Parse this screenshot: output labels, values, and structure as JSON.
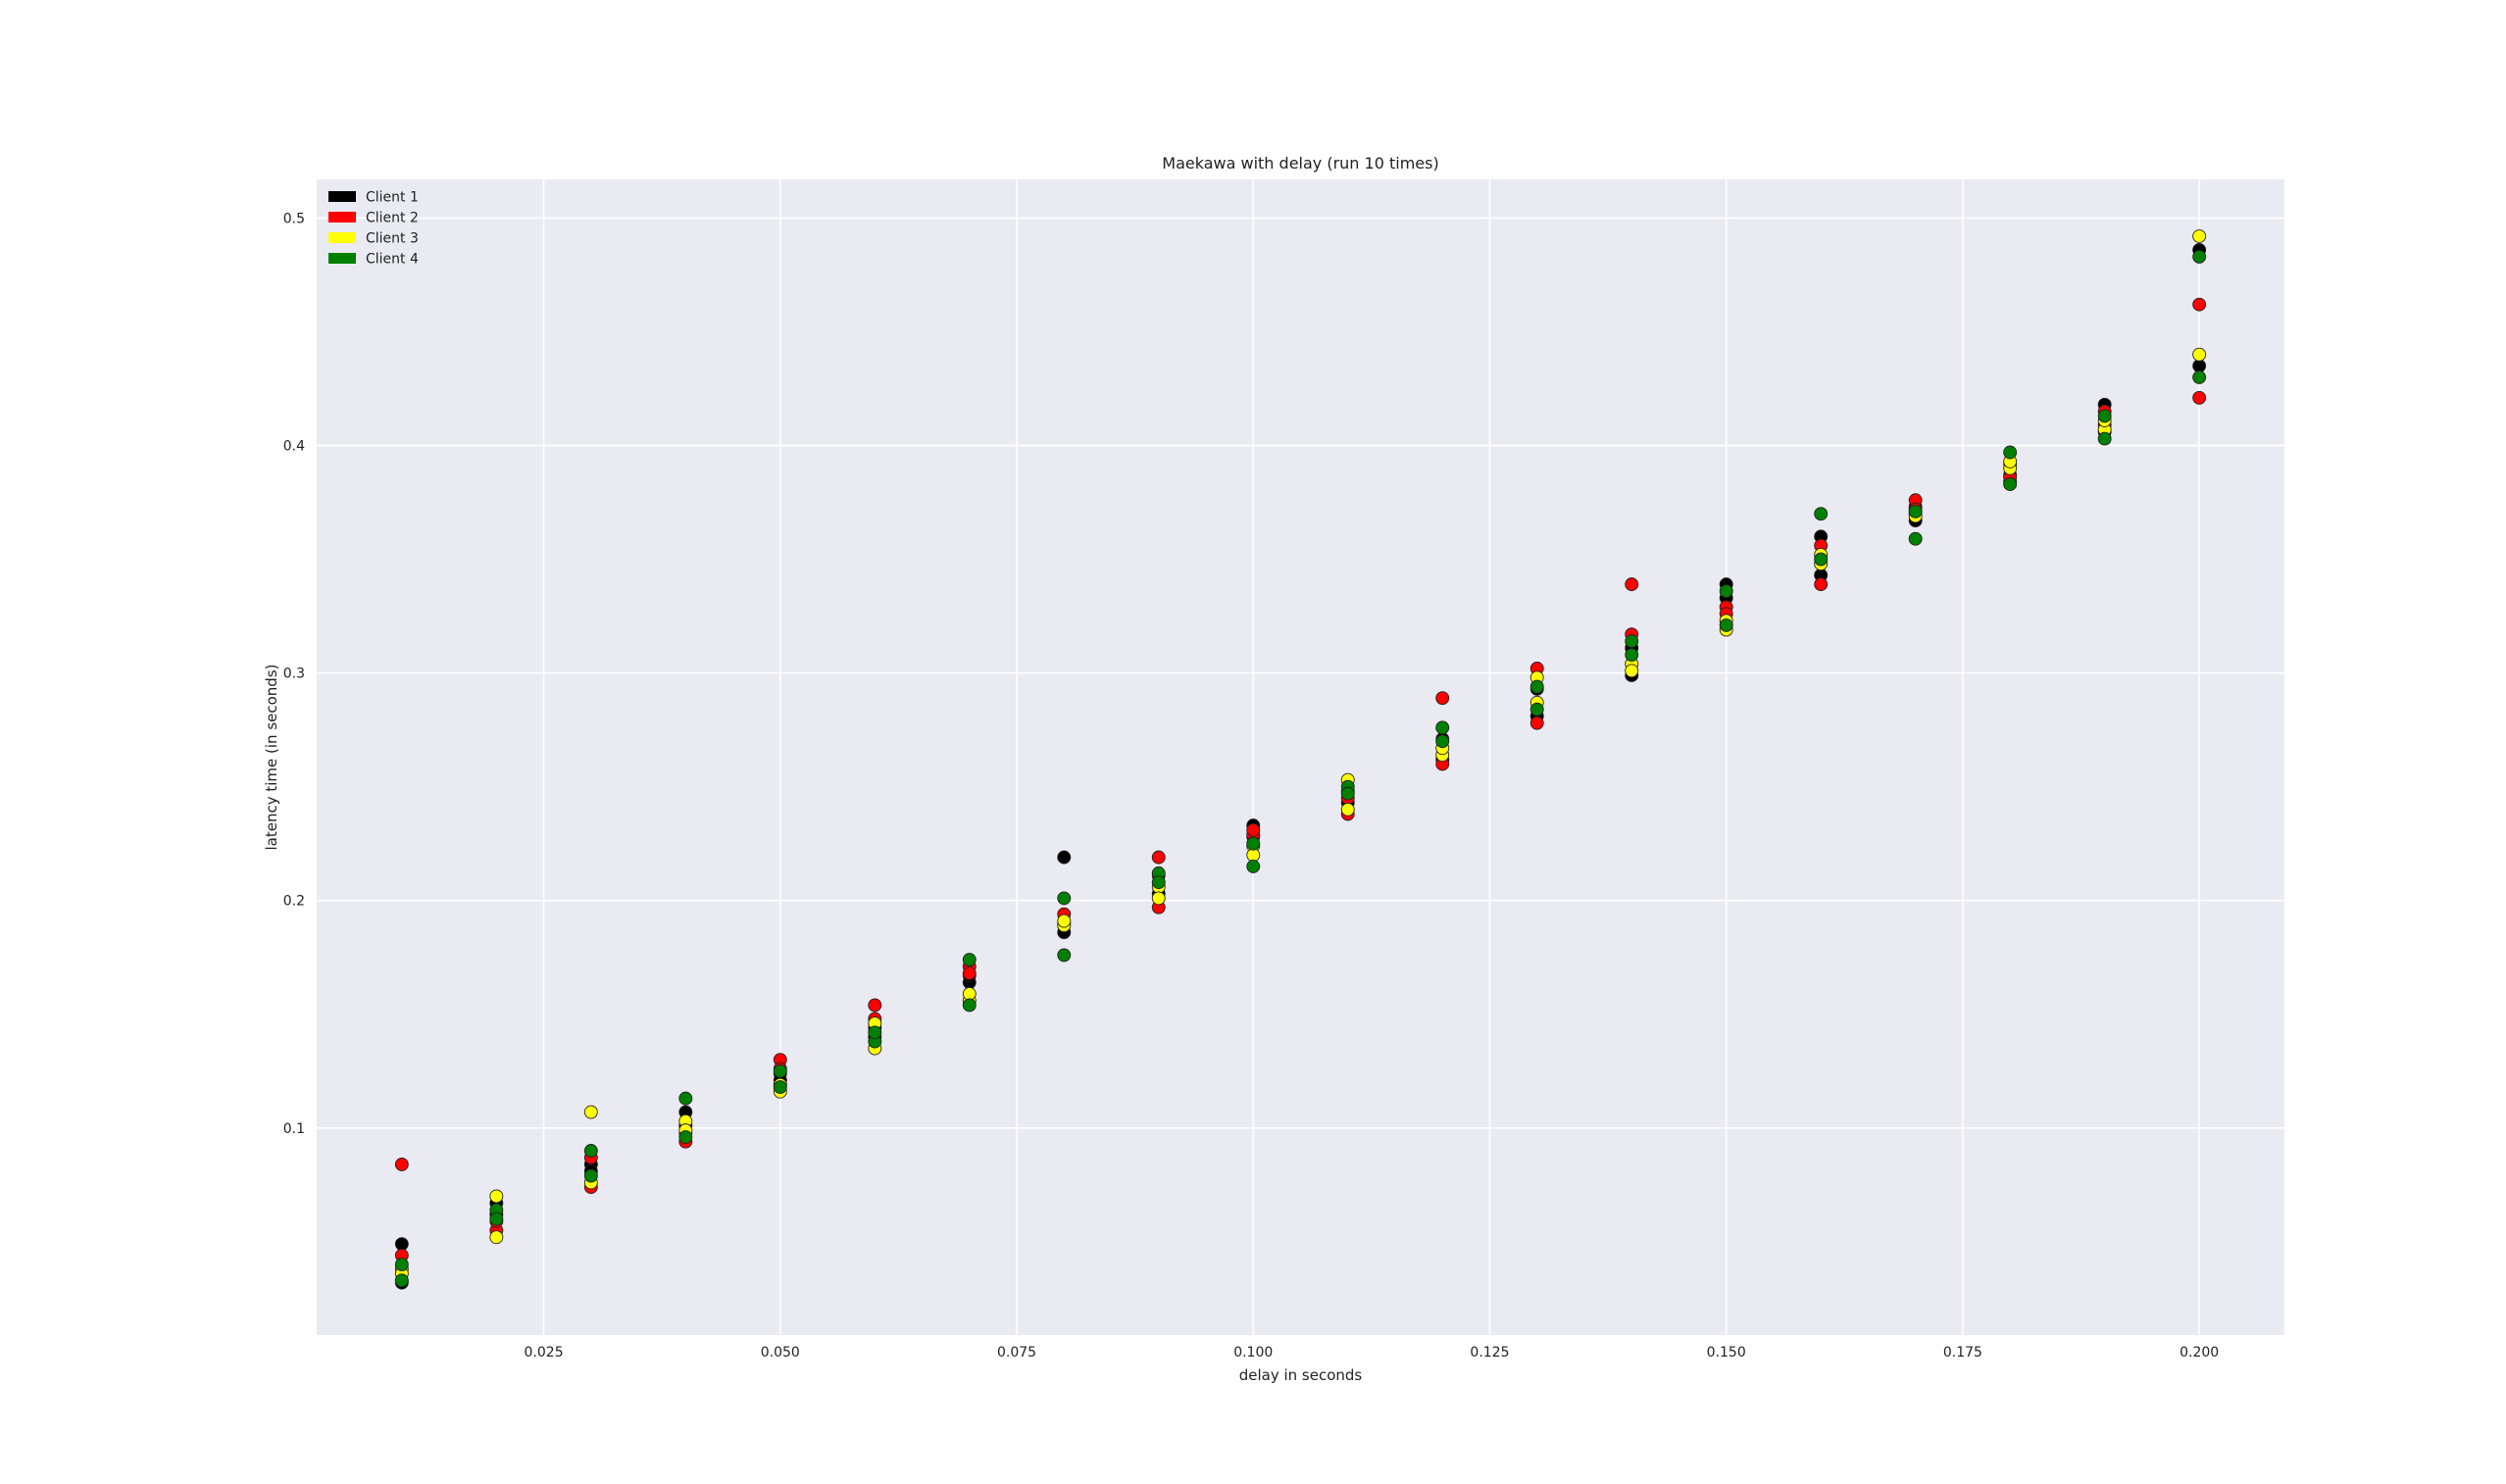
{
  "chart_data": {
    "type": "scatter",
    "title": "Maekawa with delay (run 10 times)",
    "xlabel": "delay in seconds",
    "ylabel": "latency time (in seconds)",
    "xlim": [
      0.001,
      0.209
    ],
    "ylim": [
      0.009,
      0.517
    ],
    "x_ticks": [
      0.025,
      0.05,
      0.075,
      0.1,
      0.125,
      0.15,
      0.175,
      0.2
    ],
    "x_tick_labels": [
      "0.025",
      "0.050",
      "0.075",
      "0.100",
      "0.125",
      "0.150",
      "0.175",
      "0.200"
    ],
    "y_ticks": [
      0.1,
      0.2,
      0.3,
      0.4,
      0.5
    ],
    "y_tick_labels": [
      "0.1",
      "0.2",
      "0.3",
      "0.4",
      "0.5"
    ],
    "grid": true,
    "legend_position": "top-left",
    "background": "#eaeaf2",
    "series": [
      {
        "name": "Client 1",
        "color": "#000000",
        "points": [
          [
            0.01,
            0.049
          ],
          [
            0.01,
            0.032
          ],
          [
            0.02,
            0.067
          ],
          [
            0.02,
            0.062
          ],
          [
            0.03,
            0.084
          ],
          [
            0.03,
            0.081
          ],
          [
            0.04,
            0.101
          ],
          [
            0.04,
            0.107
          ],
          [
            0.05,
            0.121
          ],
          [
            0.05,
            0.124
          ],
          [
            0.06,
            0.14
          ],
          [
            0.06,
            0.144
          ],
          [
            0.07,
            0.164
          ],
          [
            0.07,
            0.167
          ],
          [
            0.08,
            0.219
          ],
          [
            0.08,
            0.186
          ],
          [
            0.09,
            0.203
          ],
          [
            0.09,
            0.211
          ],
          [
            0.1,
            0.233
          ],
          [
            0.1,
            0.228
          ],
          [
            0.11,
            0.243
          ],
          [
            0.11,
            0.248
          ],
          [
            0.12,
            0.262
          ],
          [
            0.12,
            0.271
          ],
          [
            0.13,
            0.281
          ],
          [
            0.13,
            0.293
          ],
          [
            0.14,
            0.299
          ],
          [
            0.14,
            0.311
          ],
          [
            0.15,
            0.339
          ],
          [
            0.15,
            0.333
          ],
          [
            0.16,
            0.36
          ],
          [
            0.16,
            0.343
          ],
          [
            0.17,
            0.367
          ],
          [
            0.17,
            0.373
          ],
          [
            0.18,
            0.387
          ],
          [
            0.18,
            0.392
          ],
          [
            0.19,
            0.418
          ],
          [
            0.19,
            0.406
          ],
          [
            0.2,
            0.486
          ],
          [
            0.2,
            0.435
          ]
        ]
      },
      {
        "name": "Client 2",
        "color": "#ff0000",
        "points": [
          [
            0.01,
            0.084
          ],
          [
            0.01,
            0.044
          ],
          [
            0.02,
            0.055
          ],
          [
            0.02,
            0.059
          ],
          [
            0.03,
            0.087
          ],
          [
            0.03,
            0.074
          ],
          [
            0.04,
            0.094
          ],
          [
            0.04,
            0.098
          ],
          [
            0.05,
            0.13
          ],
          [
            0.05,
            0.126
          ],
          [
            0.06,
            0.154
          ],
          [
            0.06,
            0.148
          ],
          [
            0.07,
            0.171
          ],
          [
            0.07,
            0.168
          ],
          [
            0.08,
            0.194
          ],
          [
            0.08,
            0.19
          ],
          [
            0.09,
            0.219
          ],
          [
            0.09,
            0.197
          ],
          [
            0.1,
            0.229
          ],
          [
            0.1,
            0.231
          ],
          [
            0.11,
            0.238
          ],
          [
            0.11,
            0.245
          ],
          [
            0.12,
            0.289
          ],
          [
            0.12,
            0.26
          ],
          [
            0.13,
            0.302
          ],
          [
            0.13,
            0.278
          ],
          [
            0.14,
            0.339
          ],
          [
            0.14,
            0.317
          ],
          [
            0.15,
            0.329
          ],
          [
            0.15,
            0.326
          ],
          [
            0.16,
            0.339
          ],
          [
            0.16,
            0.356
          ],
          [
            0.17,
            0.376
          ],
          [
            0.17,
            0.372
          ],
          [
            0.18,
            0.384
          ],
          [
            0.18,
            0.386
          ],
          [
            0.19,
            0.415
          ],
          [
            0.19,
            0.409
          ],
          [
            0.2,
            0.462
          ],
          [
            0.2,
            0.421
          ]
        ]
      },
      {
        "name": "Client 3",
        "color": "#ffff00",
        "points": [
          [
            0.01,
            0.038
          ],
          [
            0.01,
            0.036
          ],
          [
            0.02,
            0.07
          ],
          [
            0.02,
            0.052
          ],
          [
            0.03,
            0.107
          ],
          [
            0.03,
            0.076
          ],
          [
            0.04,
            0.103
          ],
          [
            0.04,
            0.099
          ],
          [
            0.05,
            0.116
          ],
          [
            0.05,
            0.119
          ],
          [
            0.06,
            0.135
          ],
          [
            0.06,
            0.146
          ],
          [
            0.07,
            0.156
          ],
          [
            0.07,
            0.159
          ],
          [
            0.08,
            0.189
          ],
          [
            0.08,
            0.191
          ],
          [
            0.09,
            0.206
          ],
          [
            0.09,
            0.201
          ],
          [
            0.1,
            0.224
          ],
          [
            0.1,
            0.22
          ],
          [
            0.11,
            0.253
          ],
          [
            0.11,
            0.24
          ],
          [
            0.12,
            0.264
          ],
          [
            0.12,
            0.267
          ],
          [
            0.13,
            0.298
          ],
          [
            0.13,
            0.287
          ],
          [
            0.14,
            0.304
          ],
          [
            0.14,
            0.301
          ],
          [
            0.15,
            0.319
          ],
          [
            0.15,
            0.323
          ],
          [
            0.16,
            0.352
          ],
          [
            0.16,
            0.348
          ],
          [
            0.17,
            0.37
          ],
          [
            0.17,
            0.369
          ],
          [
            0.18,
            0.39
          ],
          [
            0.18,
            0.393
          ],
          [
            0.19,
            0.407
          ],
          [
            0.19,
            0.411
          ],
          [
            0.2,
            0.492
          ],
          [
            0.2,
            0.44
          ]
        ]
      },
      {
        "name": "Client 4",
        "color": "#008000",
        "points": [
          [
            0.01,
            0.033
          ],
          [
            0.01,
            0.04
          ],
          [
            0.02,
            0.064
          ],
          [
            0.02,
            0.06
          ],
          [
            0.03,
            0.09
          ],
          [
            0.03,
            0.079
          ],
          [
            0.04,
            0.113
          ],
          [
            0.04,
            0.096
          ],
          [
            0.05,
            0.125
          ],
          [
            0.05,
            0.118
          ],
          [
            0.06,
            0.138
          ],
          [
            0.06,
            0.142
          ],
          [
            0.07,
            0.174
          ],
          [
            0.07,
            0.154
          ],
          [
            0.08,
            0.201
          ],
          [
            0.08,
            0.176
          ],
          [
            0.09,
            0.212
          ],
          [
            0.09,
            0.208
          ],
          [
            0.1,
            0.215
          ],
          [
            0.1,
            0.225
          ],
          [
            0.11,
            0.25
          ],
          [
            0.11,
            0.247
          ],
          [
            0.12,
            0.276
          ],
          [
            0.12,
            0.27
          ],
          [
            0.13,
            0.294
          ],
          [
            0.13,
            0.284
          ],
          [
            0.14,
            0.314
          ],
          [
            0.14,
            0.308
          ],
          [
            0.15,
            0.336
          ],
          [
            0.15,
            0.321
          ],
          [
            0.16,
            0.37
          ],
          [
            0.16,
            0.35
          ],
          [
            0.17,
            0.359
          ],
          [
            0.17,
            0.371
          ],
          [
            0.18,
            0.397
          ],
          [
            0.18,
            0.383
          ],
          [
            0.19,
            0.403
          ],
          [
            0.19,
            0.413
          ],
          [
            0.2,
            0.483
          ],
          [
            0.2,
            0.43
          ]
        ]
      }
    ]
  }
}
